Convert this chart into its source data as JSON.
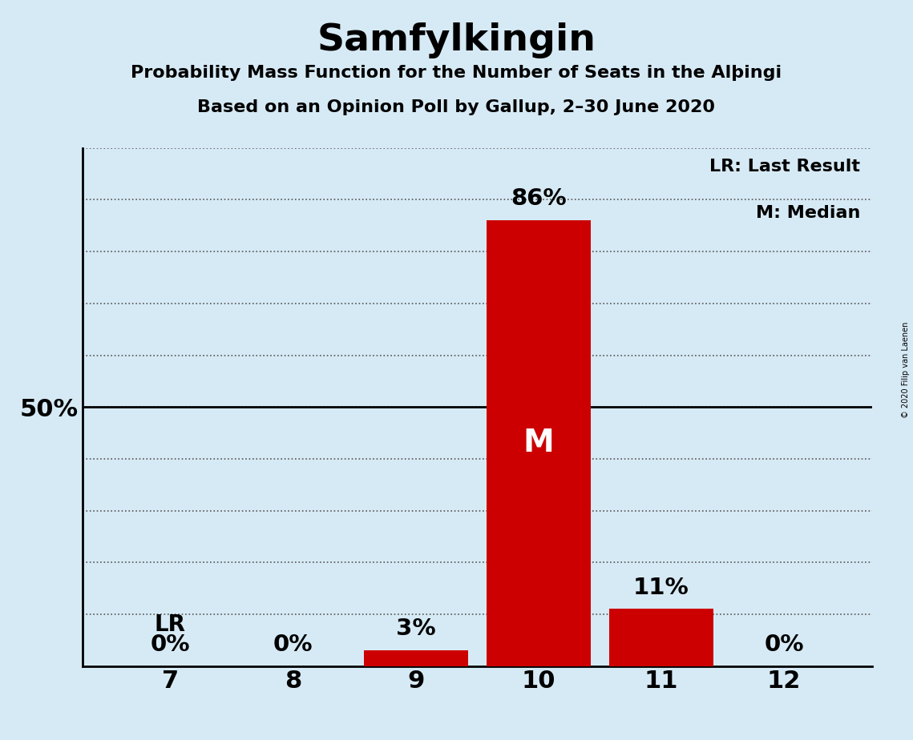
{
  "title": "Samfylkingin",
  "subtitle1": "Probability Mass Function for the Number of Seats in the Alþingi",
  "subtitle2": "Based on an Opinion Poll by Gallup, 2–30 June 2020",
  "categories": [
    7,
    8,
    9,
    10,
    11,
    12
  ],
  "values": [
    0,
    0,
    3,
    86,
    11,
    0
  ],
  "bar_color": "#cc0000",
  "background_color": "#d6eaf5",
  "title_fontsize": 34,
  "subtitle_fontsize": 16,
  "ylim": [
    0,
    100
  ],
  "yticks": [
    0,
    10,
    20,
    30,
    40,
    50,
    60,
    70,
    80,
    90,
    100
  ],
  "median_seat": 10,
  "last_result_seat": 7,
  "legend_text1": "LR: Last Result",
  "legend_text2": "M: Median",
  "copyright_text": "© 2020 Filip van Laenen",
  "pct_label_fontsize": 21,
  "lr_fontsize": 20,
  "M_fontsize": 28,
  "tick_fontsize": 22,
  "legend_fontsize": 16
}
